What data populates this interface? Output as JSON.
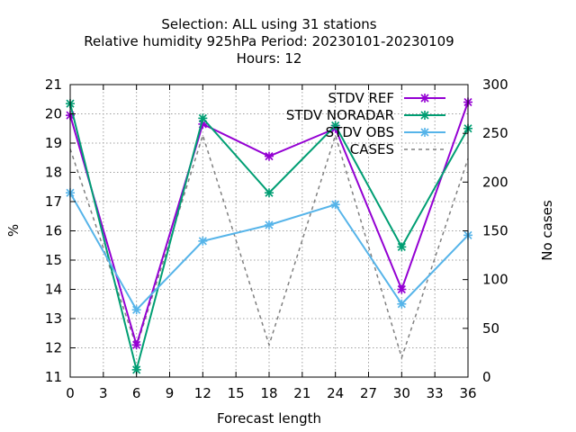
{
  "chart_data": {
    "type": "line",
    "title_lines": [
      "Selection: ALL using    31 stations",
      "Relative humidity 925hPa   Period: 20230101-20230109",
      "Hours:  12"
    ],
    "xlabel": "Forecast length",
    "ylabel": "%",
    "y2label": "No cases",
    "x_ticks": [
      0,
      3,
      6,
      9,
      12,
      15,
      18,
      21,
      24,
      27,
      30,
      33,
      36
    ],
    "xlim": [
      0,
      36
    ],
    "ylim": [
      11,
      21
    ],
    "y_ticks": [
      11,
      12,
      13,
      14,
      15,
      16,
      17,
      18,
      19,
      20,
      21
    ],
    "y2lim": [
      0,
      300
    ],
    "y2_ticks": [
      0,
      50,
      100,
      150,
      200,
      250,
      300
    ],
    "grid": true,
    "legend_position": "top-right",
    "x": [
      0,
      6,
      12,
      18,
      24,
      30,
      36
    ],
    "series": [
      {
        "name": "STDV REF",
        "axis": "y",
        "color": "#9400d3",
        "style": "solid",
        "marker": "x",
        "values": [
          19.95,
          12.1,
          19.65,
          18.55,
          19.5,
          14.0,
          20.4
        ]
      },
      {
        "name": "STDV NORADAR",
        "axis": "y",
        "color": "#009e73",
        "style": "solid",
        "marker": "x",
        "values": [
          20.35,
          11.25,
          19.85,
          17.3,
          19.6,
          15.45,
          19.5
        ]
      },
      {
        "name": "STDV OBS",
        "axis": "y",
        "color": "#56b4e9",
        "style": "solid",
        "marker": "x",
        "values": [
          17.3,
          13.3,
          15.65,
          16.2,
          16.9,
          13.5,
          15.85
        ]
      },
      {
        "name": "CASES",
        "axis": "y2",
        "color": "#808080",
        "style": "dashed",
        "marker": "none",
        "values": [
          234,
          31,
          248,
          33,
          248,
          20,
          224
        ]
      }
    ]
  }
}
